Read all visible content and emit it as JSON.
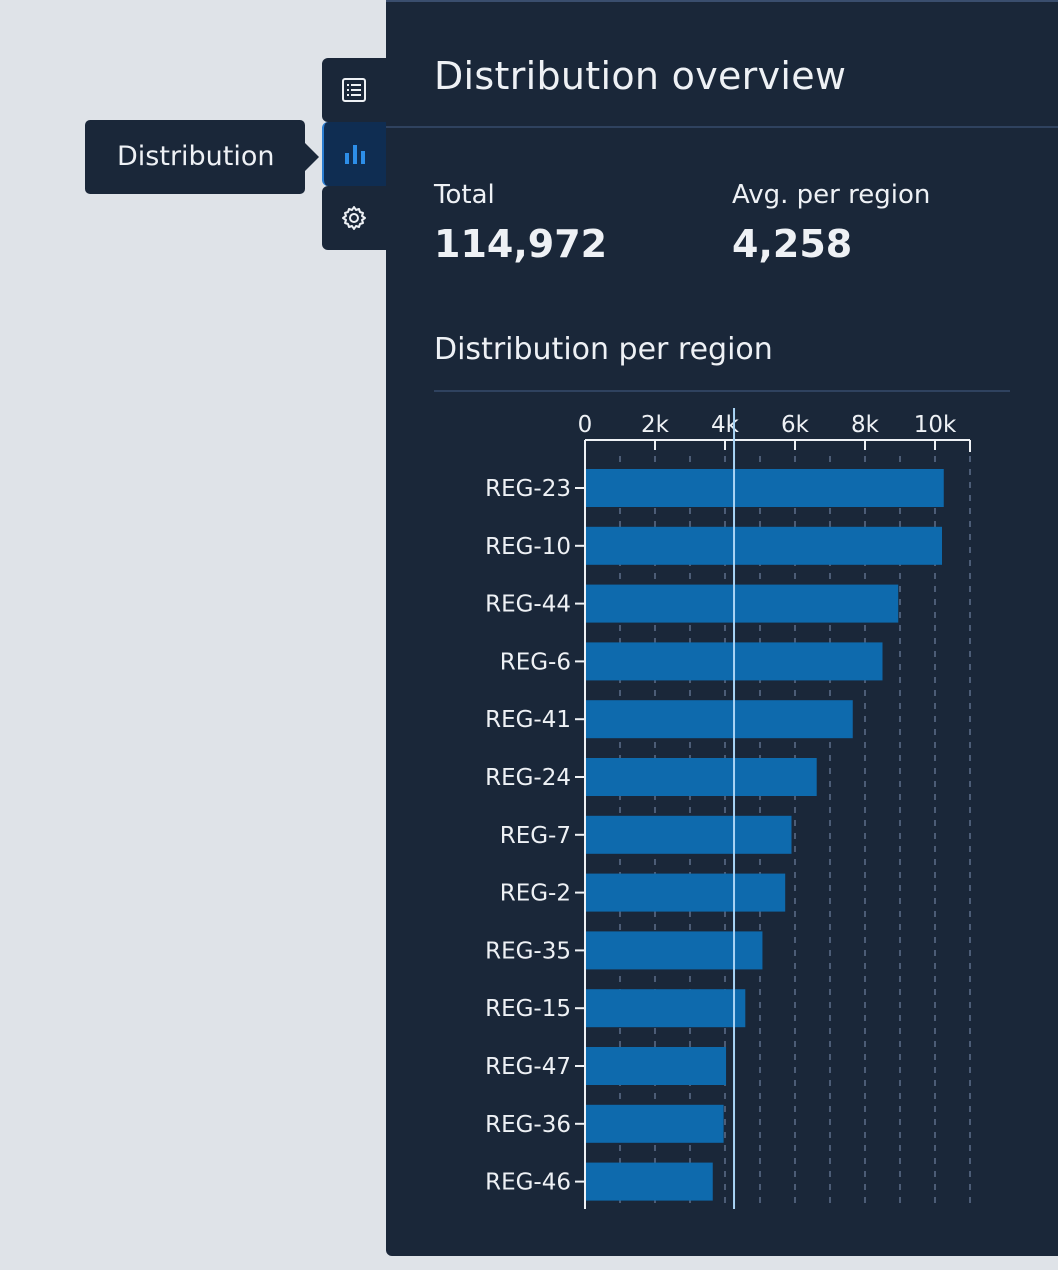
{
  "tooltip": "Distribution",
  "rail": {
    "items": [
      {
        "icon": "list-icon",
        "active": false
      },
      {
        "icon": "bar-chart-icon",
        "active": true
      },
      {
        "icon": "gear-icon",
        "active": false
      }
    ]
  },
  "panel": {
    "title": "Distribution overview",
    "stats": [
      {
        "label": "Total",
        "value": "114,972"
      },
      {
        "label": "Avg. per region",
        "value": "4,258"
      }
    ],
    "section_title": "Distribution per region"
  },
  "colors": {
    "bar": "#0e6aad",
    "avg_line": "#a9d4f5",
    "panel": "#1a2739",
    "accent": "#2d8ee8"
  },
  "chart_data": {
    "type": "bar",
    "orientation": "horizontal",
    "categories": [
      "REG-23",
      "REG-10",
      "REG-44",
      "REG-6",
      "REG-41",
      "REG-24",
      "REG-7",
      "REG-2",
      "REG-35",
      "REG-15",
      "REG-47",
      "REG-36",
      "REG-46"
    ],
    "values": [
      10250,
      10200,
      8950,
      8500,
      7650,
      6620,
      5900,
      5720,
      5070,
      4580,
      4030,
      3960,
      3650
    ],
    "xlim": [
      0,
      11000
    ],
    "ticks": [
      0,
      2000,
      4000,
      6000,
      8000,
      10000
    ],
    "tick_labels": [
      "0",
      "2k",
      "4k",
      "6k",
      "8k",
      "10k"
    ],
    "reference_line": 4258,
    "grid": true
  }
}
